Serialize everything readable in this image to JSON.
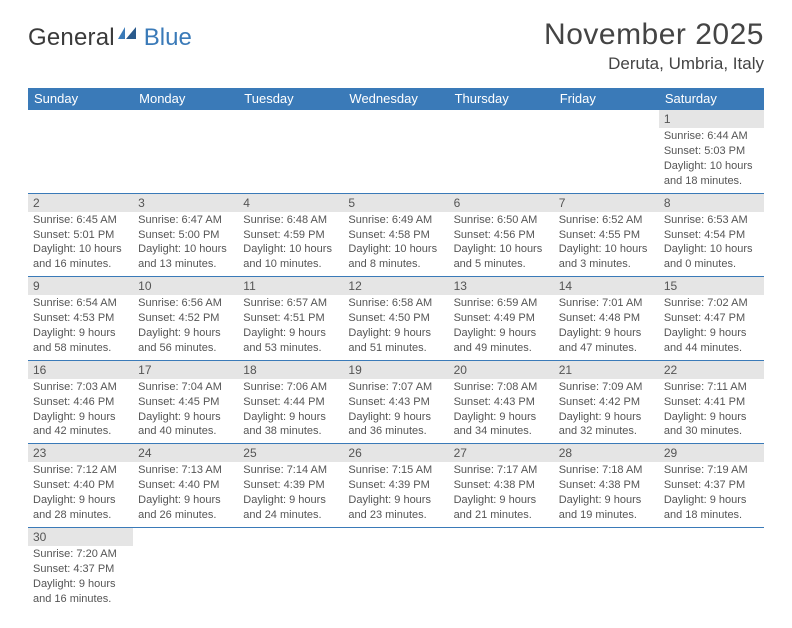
{
  "logo": {
    "text1": "General",
    "text2": "Blue"
  },
  "title": "November 2025",
  "location": "Deruta, Umbria, Italy",
  "colors": {
    "header_bg": "#3a7ab8",
    "header_text": "#ffffff",
    "daynum_bg": "#e5e5e5",
    "text": "#555555",
    "border": "#3a7ab8"
  },
  "dayHeaders": [
    "Sunday",
    "Monday",
    "Tuesday",
    "Wednesday",
    "Thursday",
    "Friday",
    "Saturday"
  ],
  "weeks": [
    [
      {
        "empty": true
      },
      {
        "empty": true
      },
      {
        "empty": true
      },
      {
        "empty": true
      },
      {
        "empty": true
      },
      {
        "empty": true
      },
      {
        "day": "1",
        "sunrise": "Sunrise: 6:44 AM",
        "sunset": "Sunset: 5:03 PM",
        "daylight": "Daylight: 10 hours and 18 minutes."
      }
    ],
    [
      {
        "day": "2",
        "sunrise": "Sunrise: 6:45 AM",
        "sunset": "Sunset: 5:01 PM",
        "daylight": "Daylight: 10 hours and 16 minutes."
      },
      {
        "day": "3",
        "sunrise": "Sunrise: 6:47 AM",
        "sunset": "Sunset: 5:00 PM",
        "daylight": "Daylight: 10 hours and 13 minutes."
      },
      {
        "day": "4",
        "sunrise": "Sunrise: 6:48 AM",
        "sunset": "Sunset: 4:59 PM",
        "daylight": "Daylight: 10 hours and 10 minutes."
      },
      {
        "day": "5",
        "sunrise": "Sunrise: 6:49 AM",
        "sunset": "Sunset: 4:58 PM",
        "daylight": "Daylight: 10 hours and 8 minutes."
      },
      {
        "day": "6",
        "sunrise": "Sunrise: 6:50 AM",
        "sunset": "Sunset: 4:56 PM",
        "daylight": "Daylight: 10 hours and 5 minutes."
      },
      {
        "day": "7",
        "sunrise": "Sunrise: 6:52 AM",
        "sunset": "Sunset: 4:55 PM",
        "daylight": "Daylight: 10 hours and 3 minutes."
      },
      {
        "day": "8",
        "sunrise": "Sunrise: 6:53 AM",
        "sunset": "Sunset: 4:54 PM",
        "daylight": "Daylight: 10 hours and 0 minutes."
      }
    ],
    [
      {
        "day": "9",
        "sunrise": "Sunrise: 6:54 AM",
        "sunset": "Sunset: 4:53 PM",
        "daylight": "Daylight: 9 hours and 58 minutes."
      },
      {
        "day": "10",
        "sunrise": "Sunrise: 6:56 AM",
        "sunset": "Sunset: 4:52 PM",
        "daylight": "Daylight: 9 hours and 56 minutes."
      },
      {
        "day": "11",
        "sunrise": "Sunrise: 6:57 AM",
        "sunset": "Sunset: 4:51 PM",
        "daylight": "Daylight: 9 hours and 53 minutes."
      },
      {
        "day": "12",
        "sunrise": "Sunrise: 6:58 AM",
        "sunset": "Sunset: 4:50 PM",
        "daylight": "Daylight: 9 hours and 51 minutes."
      },
      {
        "day": "13",
        "sunrise": "Sunrise: 6:59 AM",
        "sunset": "Sunset: 4:49 PM",
        "daylight": "Daylight: 9 hours and 49 minutes."
      },
      {
        "day": "14",
        "sunrise": "Sunrise: 7:01 AM",
        "sunset": "Sunset: 4:48 PM",
        "daylight": "Daylight: 9 hours and 47 minutes."
      },
      {
        "day": "15",
        "sunrise": "Sunrise: 7:02 AM",
        "sunset": "Sunset: 4:47 PM",
        "daylight": "Daylight: 9 hours and 44 minutes."
      }
    ],
    [
      {
        "day": "16",
        "sunrise": "Sunrise: 7:03 AM",
        "sunset": "Sunset: 4:46 PM",
        "daylight": "Daylight: 9 hours and 42 minutes."
      },
      {
        "day": "17",
        "sunrise": "Sunrise: 7:04 AM",
        "sunset": "Sunset: 4:45 PM",
        "daylight": "Daylight: 9 hours and 40 minutes."
      },
      {
        "day": "18",
        "sunrise": "Sunrise: 7:06 AM",
        "sunset": "Sunset: 4:44 PM",
        "daylight": "Daylight: 9 hours and 38 minutes."
      },
      {
        "day": "19",
        "sunrise": "Sunrise: 7:07 AM",
        "sunset": "Sunset: 4:43 PM",
        "daylight": "Daylight: 9 hours and 36 minutes."
      },
      {
        "day": "20",
        "sunrise": "Sunrise: 7:08 AM",
        "sunset": "Sunset: 4:43 PM",
        "daylight": "Daylight: 9 hours and 34 minutes."
      },
      {
        "day": "21",
        "sunrise": "Sunrise: 7:09 AM",
        "sunset": "Sunset: 4:42 PM",
        "daylight": "Daylight: 9 hours and 32 minutes."
      },
      {
        "day": "22",
        "sunrise": "Sunrise: 7:11 AM",
        "sunset": "Sunset: 4:41 PM",
        "daylight": "Daylight: 9 hours and 30 minutes."
      }
    ],
    [
      {
        "day": "23",
        "sunrise": "Sunrise: 7:12 AM",
        "sunset": "Sunset: 4:40 PM",
        "daylight": "Daylight: 9 hours and 28 minutes."
      },
      {
        "day": "24",
        "sunrise": "Sunrise: 7:13 AM",
        "sunset": "Sunset: 4:40 PM",
        "daylight": "Daylight: 9 hours and 26 minutes."
      },
      {
        "day": "25",
        "sunrise": "Sunrise: 7:14 AM",
        "sunset": "Sunset: 4:39 PM",
        "daylight": "Daylight: 9 hours and 24 minutes."
      },
      {
        "day": "26",
        "sunrise": "Sunrise: 7:15 AM",
        "sunset": "Sunset: 4:39 PM",
        "daylight": "Daylight: 9 hours and 23 minutes."
      },
      {
        "day": "27",
        "sunrise": "Sunrise: 7:17 AM",
        "sunset": "Sunset: 4:38 PM",
        "daylight": "Daylight: 9 hours and 21 minutes."
      },
      {
        "day": "28",
        "sunrise": "Sunrise: 7:18 AM",
        "sunset": "Sunset: 4:38 PM",
        "daylight": "Daylight: 9 hours and 19 minutes."
      },
      {
        "day": "29",
        "sunrise": "Sunrise: 7:19 AM",
        "sunset": "Sunset: 4:37 PM",
        "daylight": "Daylight: 9 hours and 18 minutes."
      }
    ],
    [
      {
        "day": "30",
        "sunrise": "Sunrise: 7:20 AM",
        "sunset": "Sunset: 4:37 PM",
        "daylight": "Daylight: 9 hours and 16 minutes."
      },
      {
        "empty": true
      },
      {
        "empty": true
      },
      {
        "empty": true
      },
      {
        "empty": true
      },
      {
        "empty": true
      },
      {
        "empty": true
      }
    ]
  ]
}
